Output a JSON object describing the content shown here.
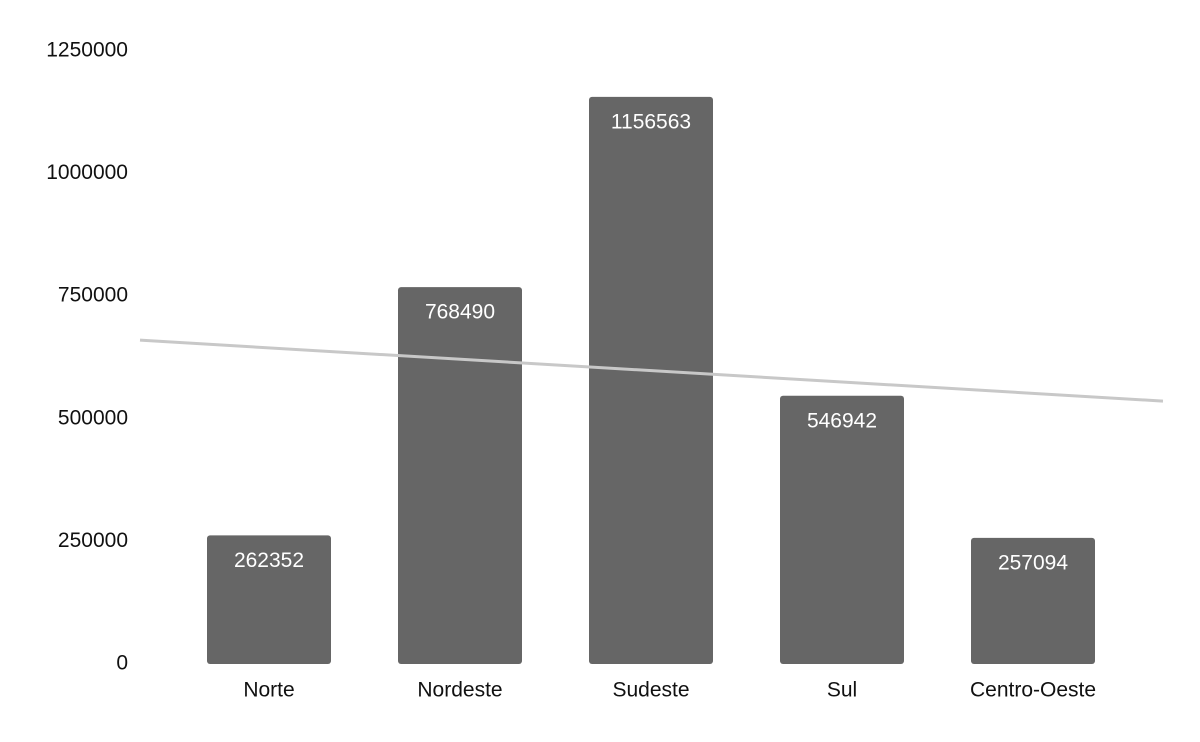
{
  "chart_data": {
    "type": "bar",
    "categories": [
      "Norte",
      "Nordeste",
      "Sudeste",
      "Sul",
      "Centro-Oeste"
    ],
    "values": [
      262352,
      768490,
      1156563,
      546942,
      257094
    ],
    "color": "#666666",
    "ylim": [
      0,
      1250000
    ],
    "yticks": [
      0,
      250000,
      500000,
      750000,
      1000000,
      1250000
    ],
    "grid": false,
    "trendline": true,
    "trendline_color": "#c8c8c8"
  }
}
